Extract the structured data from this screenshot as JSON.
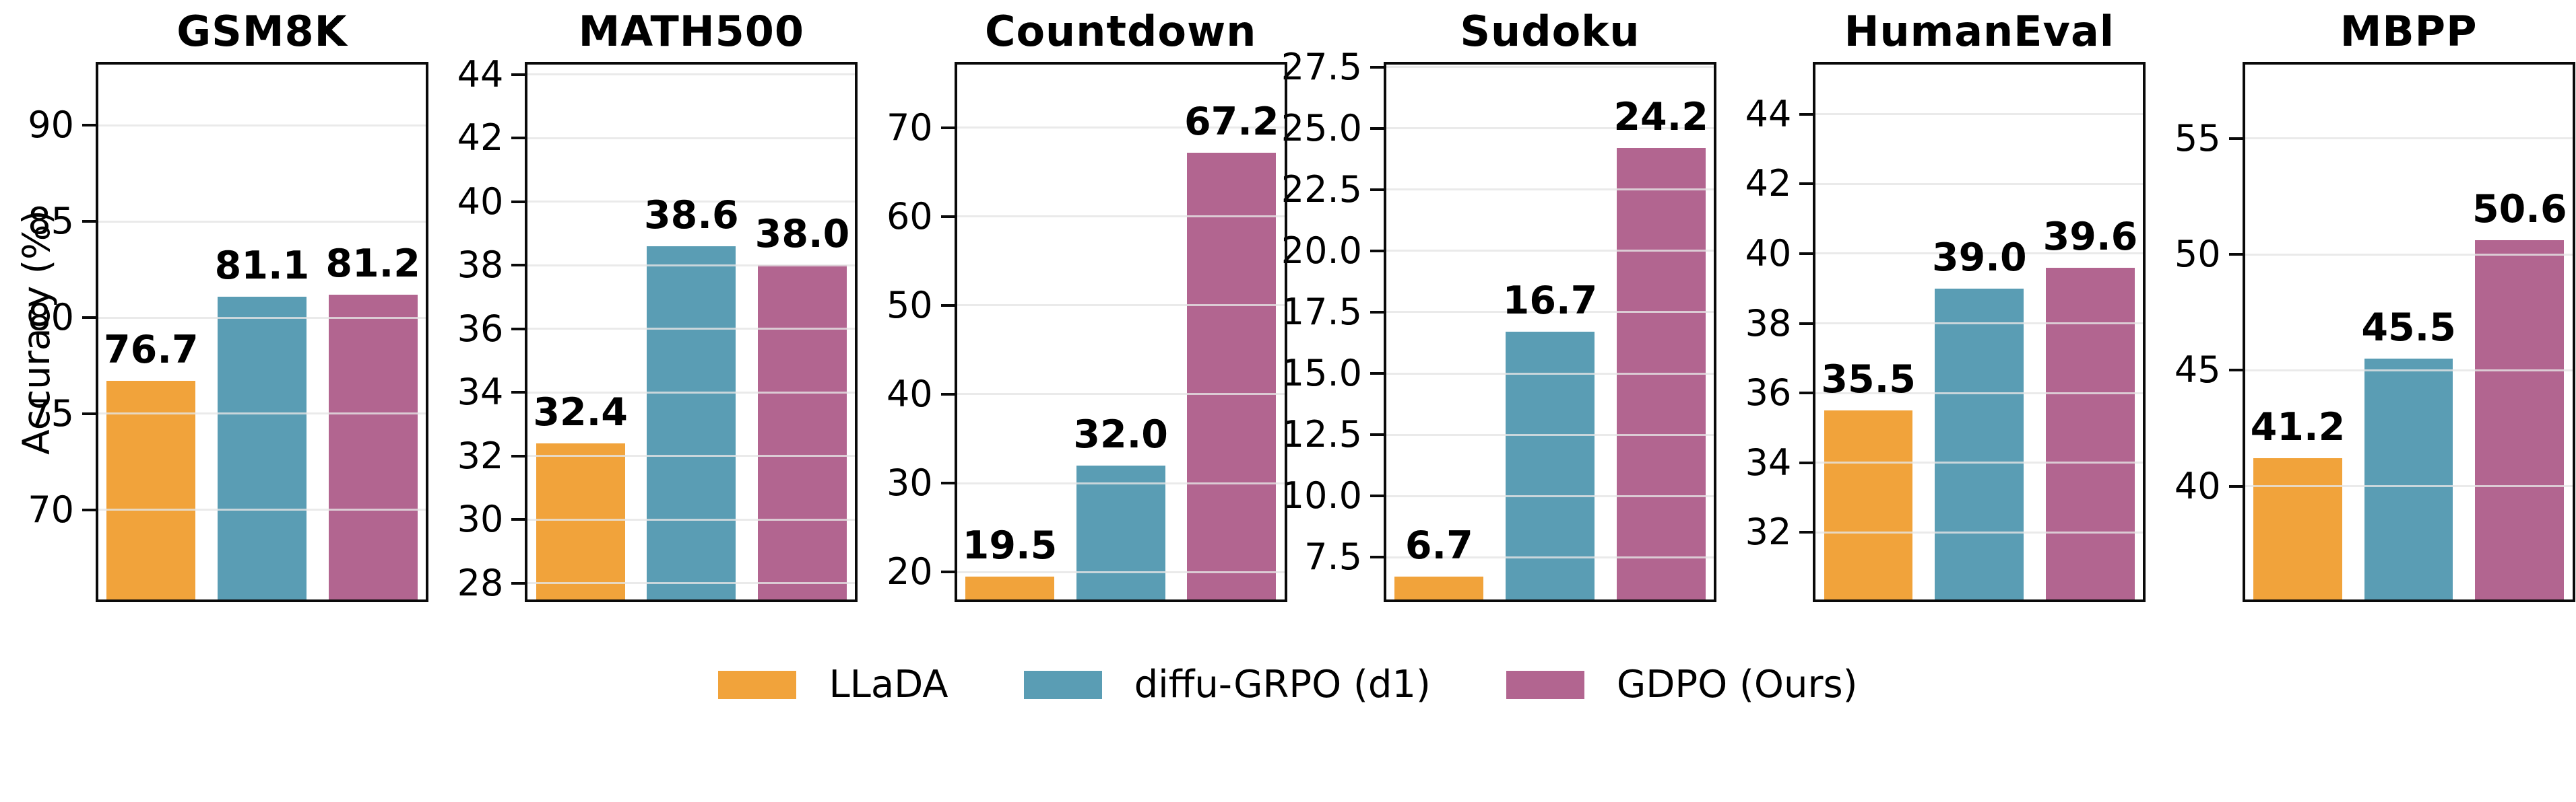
{
  "figure": {
    "background": "#FFFFFF",
    "frame_color": "#0A0A0A",
    "grid_color": "#E5E5E5"
  },
  "chart_data": {
    "type": "bar",
    "ylabel": "Accuracy (%)",
    "grid": true,
    "legend_position": "bottom-center",
    "series": [
      {
        "name": "LLaDA",
        "color": "#F1A33B"
      },
      {
        "name": "diffu-GRPO (d1)",
        "color": "#5A9DB4"
      },
      {
        "name": "GDPO (Ours)",
        "color": "#B26590"
      }
    ],
    "panels": [
      {
        "title": "GSM8K",
        "values": [
          76.7,
          81.1,
          81.2
        ],
        "value_labels": [
          "76.7",
          "81.1",
          "81.2"
        ],
        "yticks": [
          70,
          75,
          80,
          85,
          90
        ],
        "ytick_labels": [
          "70",
          "75",
          "80",
          "85",
          "90"
        ],
        "ylim": [
          65.2,
          93.3
        ]
      },
      {
        "title": "MATH500",
        "values": [
          32.4,
          38.6,
          38.0
        ],
        "value_labels": [
          "32.4",
          "38.6",
          "38.0"
        ],
        "yticks": [
          28,
          30,
          32,
          34,
          36,
          38,
          40,
          42,
          44
        ],
        "ytick_labels": [
          "28",
          "30",
          "32",
          "34",
          "36",
          "38",
          "40",
          "42",
          "44"
        ],
        "ylim": [
          27.4,
          44.4
        ]
      },
      {
        "title": "Countdown",
        "values": [
          19.5,
          32.0,
          67.2
        ],
        "value_labels": [
          "19.5",
          "32.0",
          "67.2"
        ],
        "yticks": [
          20,
          30,
          40,
          50,
          60,
          70
        ],
        "ytick_labels": [
          "20",
          "30",
          "40",
          "50",
          "60",
          "70"
        ],
        "ylim": [
          16.6,
          77.4
        ]
      },
      {
        "title": "Sudoku",
        "values": [
          6.7,
          16.7,
          24.2
        ],
        "value_labels": [
          "6.7",
          "16.7",
          "24.2"
        ],
        "yticks": [
          7.5,
          10.0,
          12.5,
          15.0,
          17.5,
          20.0,
          22.5,
          25.0,
          27.5
        ],
        "ytick_labels": [
          "7.5",
          "10.0",
          "12.5",
          "15.0",
          "17.5",
          "20.0",
          "22.5",
          "25.0",
          "27.5"
        ],
        "ylim": [
          5.67,
          27.71
        ]
      },
      {
        "title": "HumanEval",
        "values": [
          35.5,
          39.0,
          39.6
        ],
        "value_labels": [
          "35.5",
          "39.0",
          "39.6"
        ],
        "yticks": [
          32,
          34,
          36,
          38,
          40,
          42,
          44
        ],
        "ytick_labels": [
          "32",
          "34",
          "36",
          "38",
          "40",
          "42",
          "44"
        ],
        "ylim": [
          30.0,
          45.5
        ]
      },
      {
        "title": "MBPP",
        "values": [
          41.2,
          45.5,
          50.6
        ],
        "value_labels": [
          "41.2",
          "45.5",
          "50.6"
        ],
        "yticks": [
          40,
          45,
          50,
          55
        ],
        "ytick_labels": [
          "40",
          "45",
          "50",
          "55"
        ],
        "ylim": [
          35.0,
          58.3
        ]
      }
    ]
  }
}
